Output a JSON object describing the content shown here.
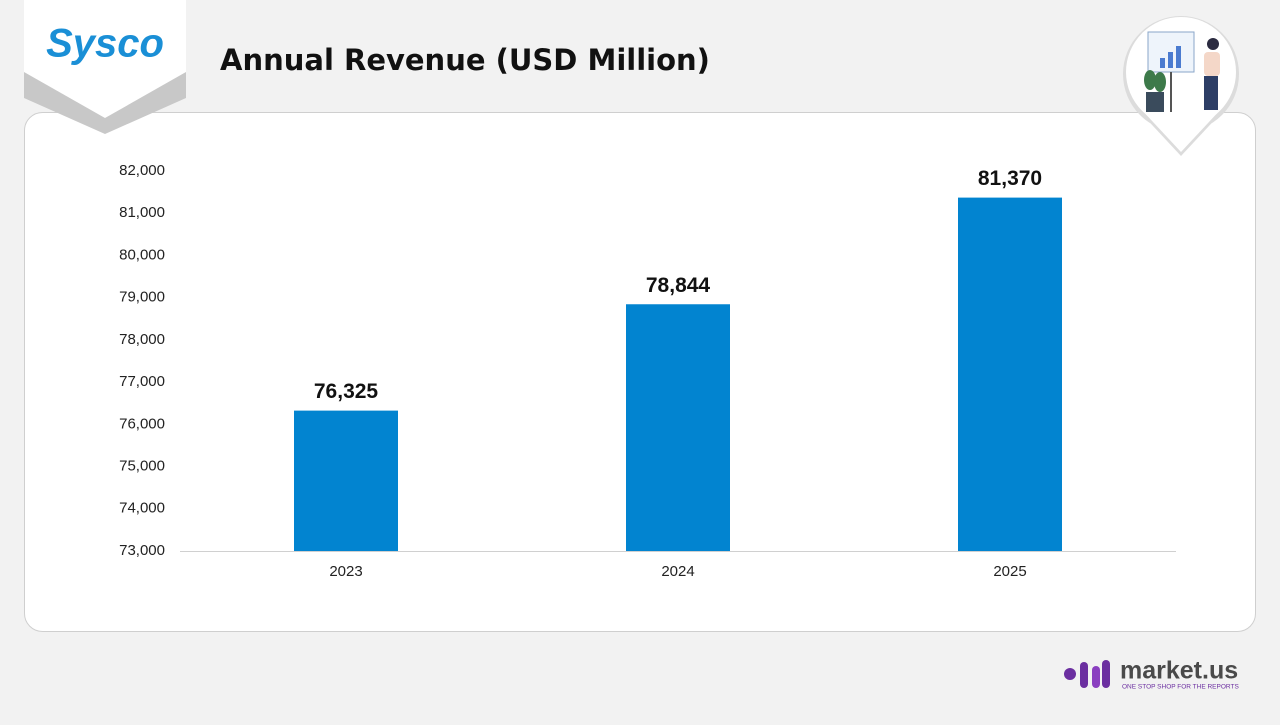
{
  "logo": "Sysco",
  "brand": {
    "name": "market.us",
    "tagline": "ONE STOP SHOP FOR THE REPORTS"
  },
  "chart_data": {
    "type": "bar",
    "title": "Annual Revenue (USD Million)",
    "categories": [
      "2023",
      "2024",
      "2025"
    ],
    "values": [
      76325,
      78844,
      81370
    ],
    "value_labels": [
      "76,325",
      "78,844",
      "81,370"
    ],
    "color": "#0284d0",
    "ylim": [
      73000,
      82000
    ],
    "yticks": [
      {
        "value": 73000,
        "label": "73,000"
      },
      {
        "value": 74000,
        "label": "74,000"
      },
      {
        "value": 75000,
        "label": "75,000"
      },
      {
        "value": 76000,
        "label": "76,000"
      },
      {
        "value": 77000,
        "label": "77,000"
      },
      {
        "value": 78000,
        "label": "78,000"
      },
      {
        "value": 79000,
        "label": "79,000"
      },
      {
        "value": 80000,
        "label": "80,000"
      },
      {
        "value": 81000,
        "label": "81,000"
      },
      {
        "value": 82000,
        "label": "82,000"
      }
    ],
    "grid": false
  }
}
